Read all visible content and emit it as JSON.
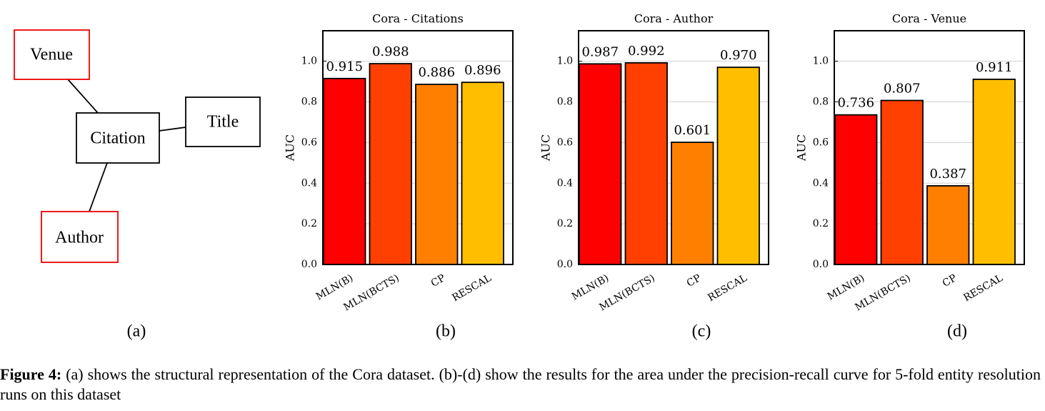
{
  "diagram": {
    "nodes": [
      {
        "label": "Venue"
      },
      {
        "label": "Citation"
      },
      {
        "label": "Title"
      },
      {
        "label": "Author"
      }
    ],
    "panel_label": "(a)"
  },
  "chart_data": [
    {
      "type": "bar",
      "title": "Cora - Citations",
      "y_label": "AUC",
      "panel_label": "(b)",
      "categories": [
        "MLN(B)",
        "MLN(BCTS)",
        "CP",
        "RESCAL"
      ],
      "values": [
        0.915,
        0.988,
        0.886,
        0.896
      ],
      "value_labels": [
        "0.915",
        "0.988",
        "0.886",
        "0.896"
      ],
      "colors": [
        "#ff0000",
        "#ff4000",
        "#ff8000",
        "#ffbf00"
      ],
      "ylim": [
        0,
        1.15
      ],
      "yticks": [
        {
          "value": 0,
          "label": "0.0"
        },
        {
          "value": 0.2,
          "label": "0.2"
        },
        {
          "value": 0.4,
          "label": "0.4"
        },
        {
          "value": 0.6,
          "label": "0.6"
        },
        {
          "value": 0.8,
          "label": "0.8"
        },
        {
          "value": 1,
          "label": "1.0"
        }
      ],
      "grid": true
    },
    {
      "type": "bar",
      "title": "Cora - Author",
      "y_label": "AUC",
      "panel_label": "(c)",
      "categories": [
        "MLN(B)",
        "MLN(BCTS)",
        "CP",
        "RESCAL"
      ],
      "values": [
        0.987,
        0.992,
        0.601,
        0.97
      ],
      "value_labels": [
        "0.987",
        "0.992",
        "0.601",
        "0.970"
      ],
      "colors": [
        "#ff0000",
        "#ff4000",
        "#ff8000",
        "#ffbf00"
      ],
      "ylim": [
        0,
        1.15
      ],
      "yticks": [
        {
          "value": 0,
          "label": "0.0"
        },
        {
          "value": 0.2,
          "label": "0.2"
        },
        {
          "value": 0.4,
          "label": "0.4"
        },
        {
          "value": 0.6,
          "label": "0.6"
        },
        {
          "value": 0.8,
          "label": "0.8"
        },
        {
          "value": 1,
          "label": "1.0"
        }
      ],
      "grid": true
    },
    {
      "type": "bar",
      "title": "Cora - Venue",
      "y_label": "AUC",
      "panel_label": "(d)",
      "categories": [
        "MLN(B)",
        "MLN(BCTS)",
        "CP",
        "RESCAL"
      ],
      "values": [
        0.736,
        0.807,
        0.387,
        0.911
      ],
      "value_labels": [
        "0.736",
        "0.807",
        "0.387",
        "0.911"
      ],
      "colors": [
        "#ff0000",
        "#ff4000",
        "#ff8000",
        "#ffbf00"
      ],
      "ylim": [
        0,
        1.15
      ],
      "yticks": [
        {
          "value": 0,
          "label": "0.0"
        },
        {
          "value": 0.2,
          "label": "0.2"
        },
        {
          "value": 0.4,
          "label": "0.4"
        },
        {
          "value": 0.6,
          "label": "0.6"
        },
        {
          "value": 0.8,
          "label": "0.8"
        },
        {
          "value": 1,
          "label": "1.0"
        }
      ],
      "grid": true
    }
  ],
  "caption": {
    "label": "Figure 4:",
    "text": "(a) shows the structural representation of the Cora dataset. (b)-(d) show the results for the area under the precision-recall curve for 5-fold entity resolution runs on this dataset"
  }
}
